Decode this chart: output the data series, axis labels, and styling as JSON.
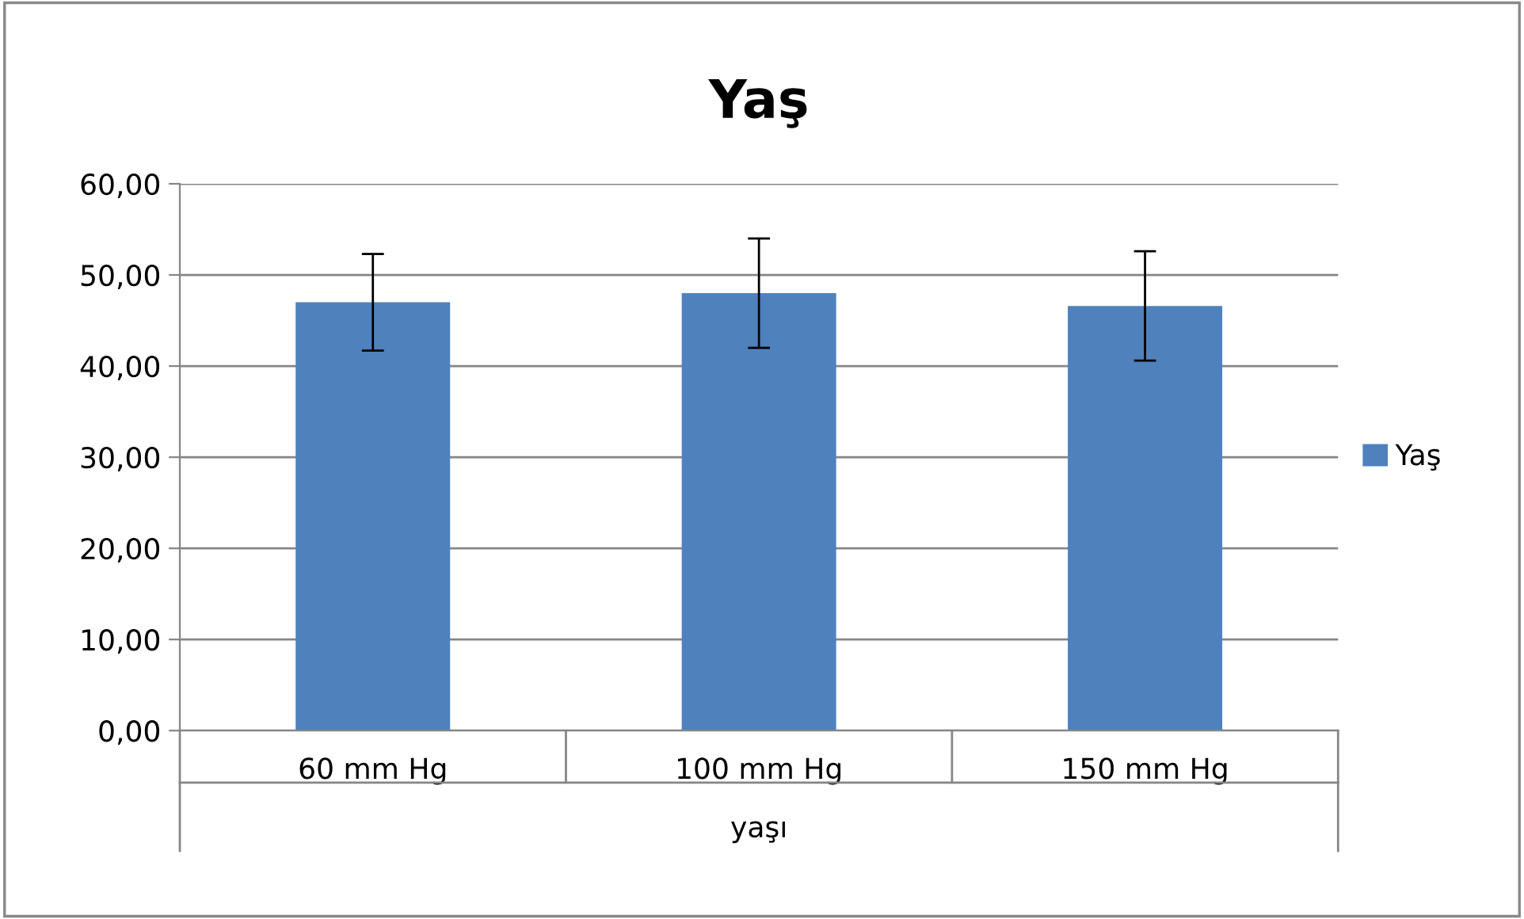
{
  "chart_data": {
    "type": "bar",
    "title": "Yaş",
    "xlabel": "yaşı",
    "categories": [
      "60 mm Hg",
      "100 mm Hg",
      "150 mm Hg"
    ],
    "series": [
      {
        "name": "Yaş",
        "color": "#4f81bd",
        "values": [
          47.0,
          48.0,
          46.6
        ],
        "errors": [
          5.3,
          6.0,
          6.0
        ]
      }
    ],
    "ylim": [
      0,
      60
    ],
    "yticks": [
      {
        "value": 0,
        "label": "0,00"
      },
      {
        "value": 10,
        "label": "10,00"
      },
      {
        "value": 20,
        "label": "20,00"
      },
      {
        "value": 30,
        "label": "30,00"
      },
      {
        "value": 40,
        "label": "40,00"
      },
      {
        "value": 50,
        "label": "50,00"
      },
      {
        "value": 60,
        "label": "60,00"
      }
    ],
    "grid": "y",
    "legend": "right"
  }
}
